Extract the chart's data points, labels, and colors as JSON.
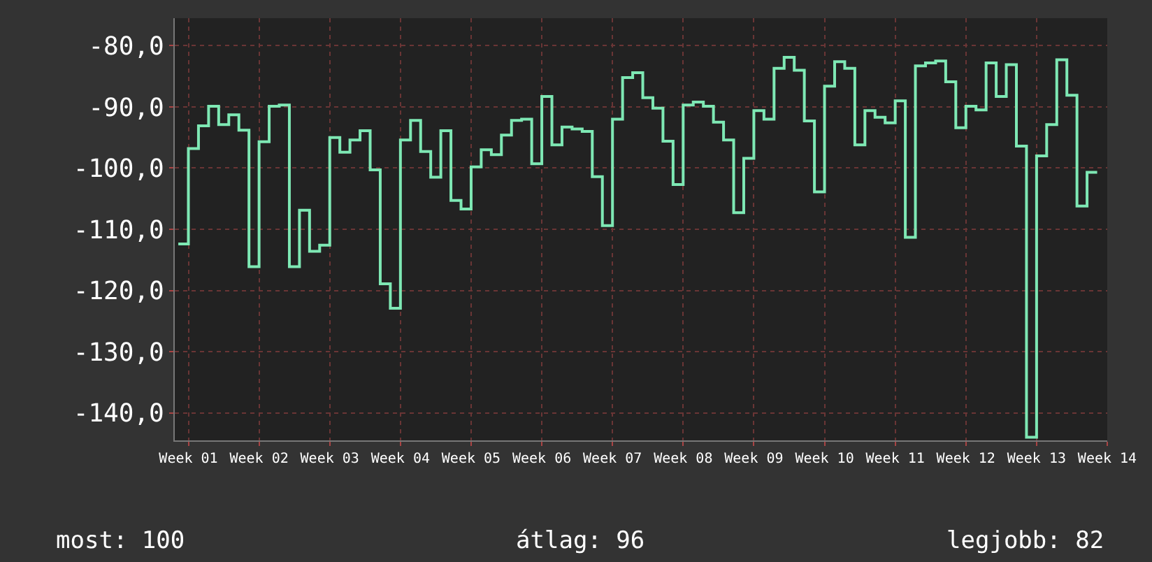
{
  "chart_data": {
    "type": "step",
    "color": "#7ee8b4",
    "categories": [
      null,
      "Week 01",
      null,
      null,
      null,
      null,
      null,
      null,
      "Week 02",
      null,
      null,
      null,
      null,
      null,
      null,
      "Week 03",
      null,
      null,
      null,
      null,
      null,
      null,
      "Week 04",
      null,
      null,
      null,
      null,
      null,
      null,
      "Week 05",
      null,
      null,
      null,
      null,
      null,
      null,
      "Week 06",
      null,
      null,
      null,
      null,
      null,
      null,
      "Week 07",
      null,
      null,
      null,
      null,
      null,
      null,
      "Week 08",
      null,
      null,
      null,
      null,
      null,
      null,
      "Week 09",
      null,
      null,
      null,
      null,
      null,
      null,
      "Week 10",
      null,
      null,
      null,
      null,
      null,
      null,
      "Week 11",
      null,
      null,
      null,
      null,
      null,
      null,
      "Week 12",
      null,
      null,
      null,
      null,
      null,
      null,
      "Week 13",
      null,
      null,
      null,
      null,
      null,
      null,
      "Week 14"
    ],
    "values": [
      -112.4,
      -96.8,
      -93.1,
      -89.9,
      -92.9,
      -91.3,
      -93.8,
      -116.1,
      -95.7,
      -89.9,
      -89.7,
      -116.1,
      -106.9,
      -113.6,
      -112.6,
      -95.0,
      -97.4,
      -95.4,
      -93.9,
      -100.3,
      -118.9,
      -122.9,
      -95.4,
      -92.2,
      -97.3,
      -101.5,
      -93.9,
      -105.3,
      -106.7,
      -99.8,
      -97.0,
      -97.8,
      -94.6,
      -92.2,
      -92.0,
      -99.3,
      -88.3,
      -96.2,
      -93.3,
      -93.6,
      -94.0,
      -101.4,
      -109.4,
      -92.0,
      -85.2,
      -84.4,
      -88.5,
      -90.2,
      -95.6,
      -102.7,
      -89.7,
      -89.2,
      -89.9,
      -92.5,
      -95.4,
      -107.3,
      -98.4,
      -90.6,
      -92.0,
      -83.7,
      -81.9,
      -84.0,
      -92.3,
      -103.9,
      -86.6,
      -82.6,
      -83.7,
      -96.2,
      -90.6,
      -91.7,
      -92.6,
      -89.0,
      -111.3,
      -83.3,
      -82.8,
      -82.5,
      -85.9,
      -93.4,
      -89.9,
      -90.5,
      -82.8,
      -88.3,
      -83.1,
      -96.4,
      -144.0,
      -98.0,
      -92.9,
      -82.3,
      -88.1,
      -106.2,
      -100.7,
      -100.7,
      null
    ],
    "ylim": [
      -144.5,
      -75.5
    ],
    "yticks": [
      {
        "value": -80,
        "label": "-80,0"
      },
      {
        "value": -90,
        "label": "-90,0"
      },
      {
        "value": -100,
        "label": "-100,0"
      },
      {
        "value": -110,
        "label": "-110,0"
      },
      {
        "value": -120,
        "label": "-120,0"
      },
      {
        "value": -130,
        "label": "-130,0"
      },
      {
        "value": -140,
        "label": "-140,0"
      }
    ],
    "grid": true,
    "annotations": [
      "most: 100",
      "átlag: 96",
      "legjobb: 82"
    ]
  }
}
